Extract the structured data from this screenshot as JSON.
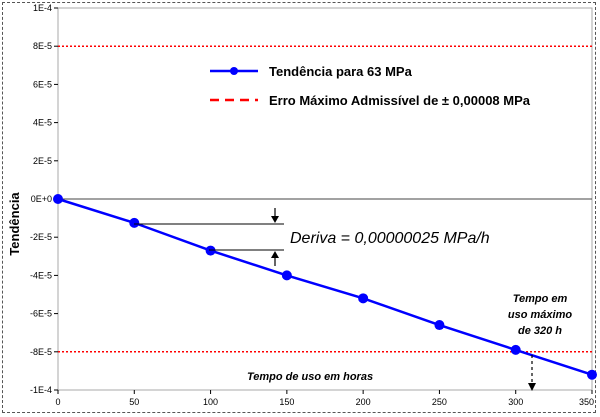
{
  "chart_data": {
    "type": "line",
    "xlabel": "Tempo de uso em horas",
    "ylabel": "Tendência",
    "xlim": [
      0,
      350
    ],
    "ylim": [
      -0.0001,
      0.0001
    ],
    "x_ticks": [
      "0",
      "50",
      "100",
      "150",
      "200",
      "250",
      "300",
      "350"
    ],
    "y_ticks": [
      "1E-4",
      "8E-5",
      "6E-5",
      "4E-5",
      "2E-5",
      "0E+0",
      "-2E-5",
      "-4E-5",
      "-6E-5",
      "-8E-5",
      "-1E-4"
    ],
    "series": [
      {
        "name": "Tendência para 63 MPa",
        "color": "#0000ff",
        "x": [
          0,
          50,
          100,
          150,
          200,
          250,
          300,
          350
        ],
        "y": [
          0,
          -1.25e-05,
          -2.7e-05,
          -4e-05,
          -5.2e-05,
          -6.6e-05,
          -7.9e-05,
          -9.2e-05
        ]
      }
    ],
    "reference_lines": [
      {
        "name": "Erro Máximo Admissível de ± 0,00008 MPa",
        "color": "#ff0000",
        "values": [
          8e-05,
          -8e-05
        ]
      }
    ],
    "legend_position": "top-center",
    "annotations": {
      "drift": "Deriva = 0,00000025  MPa/h",
      "max_time_line1": "Tempo em",
      "max_time_line2": "uso máximo",
      "max_time_line3": "de 320 h"
    }
  }
}
